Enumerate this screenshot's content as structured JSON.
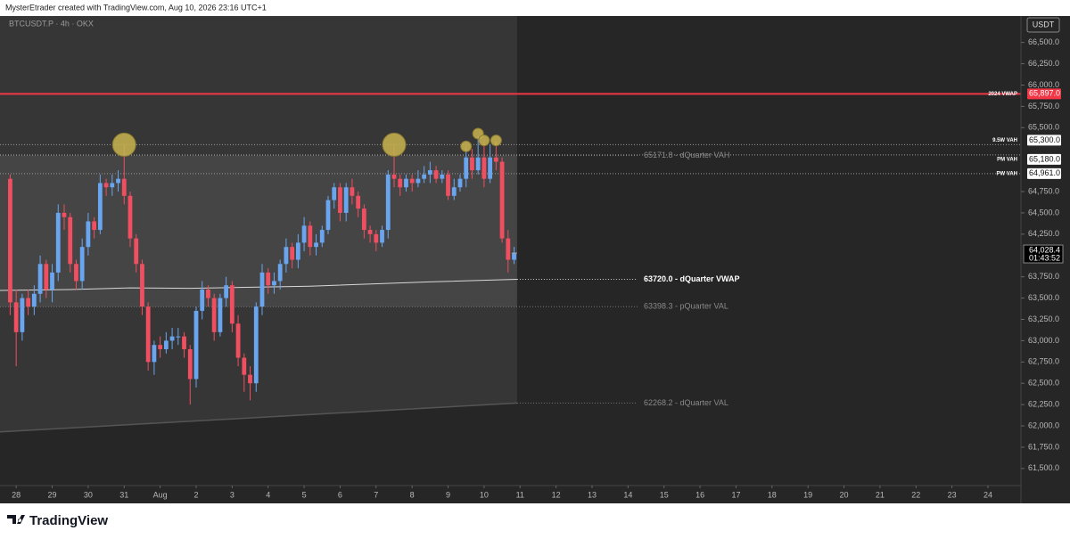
{
  "chart_data": {
    "type": "candlestick",
    "attribution": "MysterEtrader created with TradingView.com, Aug 10, 2026 23:16 UTC+1",
    "symbol": "BTCUSDT.P · 4h · OKX",
    "currency_label": "USDT",
    "logo": "TradingView",
    "up_color": "#6aa5f0",
    "down_color": "#ef4f60",
    "open": [
      64900,
      63450,
      63100,
      63500,
      63400,
      63550,
      63900,
      63600,
      63800,
      64500,
      64450,
      63900,
      63700,
      64100,
      64400,
      64300,
      64850,
      64800,
      64850,
      64900,
      64700,
      64200,
      63900,
      63400,
      62750,
      62950,
      62900,
      63000,
      63050,
      63050,
      62900,
      62550,
      63350,
      63600,
      63500,
      63100,
      63500,
      63650,
      63200,
      62800,
      62600,
      62500,
      63400,
      63800,
      63650,
      63700,
      63900,
      64100,
      63950,
      64150,
      64350,
      64100,
      64150,
      64300,
      64650,
      64800,
      64500,
      64800,
      64700,
      64550,
      64300,
      64250,
      64150,
      64300,
      64950,
      64900,
      64800,
      64900,
      64850,
      64900,
      64950,
      65000,
      64900,
      64950,
      64700,
      64800,
      64900,
      65150,
      65000,
      65150,
      64900,
      65150,
      65100,
      64200,
      63950
    ],
    "high": [
      64950,
      63600,
      63550,
      63600,
      63650,
      64000,
      63950,
      63900,
      64600,
      64600,
      64500,
      63950,
      64200,
      64500,
      64450,
      64950,
      64900,
      64950,
      65000,
      65300,
      64750,
      64250,
      63950,
      63450,
      63000,
      63050,
      63100,
      63150,
      63150,
      63100,
      62950,
      63400,
      63700,
      63650,
      63550,
      63550,
      63750,
      63700,
      63300,
      62850,
      62700,
      63450,
      63900,
      63850,
      63800,
      63950,
      64200,
      64150,
      64250,
      64450,
      64400,
      64250,
      64350,
      64700,
      64850,
      64850,
      64850,
      64900,
      64750,
      64600,
      64350,
      64300,
      64350,
      65000,
      65300,
      64950,
      64950,
      64950,
      65000,
      65050,
      65100,
      65050,
      65000,
      65000,
      64900,
      64950,
      65280,
      65250,
      65400,
      65350,
      65300,
      65350,
      65150,
      64300,
      64100
    ],
    "low": [
      63300,
      62700,
      63000,
      63300,
      63300,
      63450,
      63500,
      63450,
      63700,
      64300,
      63800,
      63600,
      63600,
      64000,
      64200,
      64250,
      64700,
      64700,
      64750,
      64600,
      64100,
      63800,
      63300,
      62650,
      62600,
      62800,
      62850,
      62900,
      62950,
      62800,
      62250,
      62450,
      63250,
      63400,
      63000,
      63050,
      63400,
      63100,
      62700,
      62400,
      62300,
      62400,
      63300,
      63550,
      63550,
      63600,
      63800,
      63850,
      63850,
      64050,
      64000,
      64000,
      64100,
      64250,
      64550,
      64400,
      64400,
      64600,
      64450,
      64200,
      64150,
      64050,
      64100,
      64200,
      64800,
      64700,
      64750,
      64750,
      64800,
      64850,
      64850,
      64850,
      64850,
      64650,
      64650,
      64750,
      64800,
      64900,
      64950,
      64800,
      64850,
      65000,
      64150,
      63800,
      63900
    ],
    "close": [
      63450,
      63100,
      63500,
      63400,
      63550,
      63900,
      63600,
      63800,
      64500,
      64450,
      63900,
      63700,
      64100,
      64400,
      64300,
      64850,
      64800,
      64850,
      64900,
      64700,
      64200,
      63900,
      63400,
      62750,
      62950,
      62900,
      63000,
      63050,
      63050,
      62900,
      62550,
      63350,
      63600,
      63500,
      63100,
      63500,
      63650,
      63200,
      62800,
      62600,
      62500,
      63400,
      63800,
      63650,
      63700,
      63900,
      64100,
      63950,
      64150,
      64350,
      64100,
      64150,
      64300,
      64650,
      64800,
      64500,
      64800,
      64700,
      64550,
      64300,
      64250,
      64150,
      64300,
      64950,
      64900,
      64800,
      64900,
      64850,
      64900,
      64950,
      65000,
      64900,
      64950,
      64700,
      64800,
      64900,
      65150,
      65000,
      65150,
      64900,
      65150,
      65100,
      64200,
      63950,
      64028.4
    ],
    "last_price": {
      "value": 64028.4,
      "label": "64,028.4"
    },
    "countdown": "01:43:52",
    "markers": {
      "color": "#c9b450",
      "x": [
        19,
        64,
        76,
        78,
        79,
        81
      ],
      "y": [
        65300,
        65300,
        65280,
        65430,
        65350,
        65350
      ],
      "size": [
        13,
        13,
        6,
        6,
        6,
        6
      ]
    },
    "vwap_curve": {
      "color": "#d8d8d8",
      "x": [
        -1.7,
        10,
        20,
        30,
        50,
        70,
        84.5
      ],
      "y": [
        63590,
        63600,
        63620,
        63615,
        63640,
        63690,
        63720
      ]
    },
    "val_curve": {
      "x": [
        -1.7,
        84.5
      ],
      "y": [
        61930,
        62268.2
      ]
    },
    "levels": [
      {
        "name": "2024 VWAP",
        "value": 65897,
        "label": "65,897.0",
        "color": "#f23645"
      },
      {
        "name": "9.5W VAH",
        "value": 65300,
        "label": "65,300.0",
        "color": "#9a9a9a"
      },
      {
        "name": "PM VAH",
        "value": 65180,
        "label": "65,180.0",
        "color": "#9a9a9a"
      },
      {
        "name": "PW VAH",
        "value": 64961,
        "label": "64,961.0",
        "color": "#9a9a9a"
      }
    ],
    "quarter_levels": [
      {
        "text": "65171.8 - dQuarter VAH",
        "value": 65171.8,
        "bold": false
      },
      {
        "text": "63720.0 - dQuarter VWAP",
        "value": 63720.0,
        "bold": true
      },
      {
        "text": "63398.3 - pQuarter VAL",
        "value": 63398.3,
        "bold": false
      },
      {
        "text": "62268.2 - dQuarter VAL",
        "value": 62268.2,
        "bold": false
      }
    ],
    "xlim": [
      -1.7,
      168.5
    ],
    "ylim": [
      61300,
      66810
    ],
    "xticks": [
      {
        "value": 1,
        "label": "28"
      },
      {
        "value": 7,
        "label": "29"
      },
      {
        "value": 13,
        "label": "30"
      },
      {
        "value": 19,
        "label": "31"
      },
      {
        "value": 25,
        "label": "Aug"
      },
      {
        "value": 31,
        "label": "2"
      },
      {
        "value": 37,
        "label": "3"
      },
      {
        "value": 43,
        "label": "4"
      },
      {
        "value": 49,
        "label": "5"
      },
      {
        "value": 55,
        "label": "6"
      },
      {
        "value": 61,
        "label": "7"
      },
      {
        "value": 67,
        "label": "8"
      },
      {
        "value": 73,
        "label": "9"
      },
      {
        "value": 79,
        "label": "10"
      },
      {
        "value": 85,
        "label": "11"
      },
      {
        "value": 91,
        "label": "12"
      },
      {
        "value": 97,
        "label": "13"
      },
      {
        "value": 103,
        "label": "14"
      },
      {
        "value": 109,
        "label": "15"
      },
      {
        "value": 115,
        "label": "16"
      },
      {
        "value": 121,
        "label": "17"
      },
      {
        "value": 127,
        "label": "18"
      },
      {
        "value": 133,
        "label": "19"
      },
      {
        "value": 139,
        "label": "20"
      },
      {
        "value": 145,
        "label": "21"
      },
      {
        "value": 151,
        "label": "22"
      },
      {
        "value": 157,
        "label": "23"
      },
      {
        "value": 163,
        "label": "24"
      }
    ],
    "yticks": [
      {
        "value": 61500,
        "label": "61,500.0"
      },
      {
        "value": 61750,
        "label": "61,750.0"
      },
      {
        "value": 62000,
        "label": "62,000.0"
      },
      {
        "value": 62250,
        "label": "62,250.0"
      },
      {
        "value": 62500,
        "label": "62,500.0"
      },
      {
        "value": 62750,
        "label": "62,750.0"
      },
      {
        "value": 63000,
        "label": "63,000.0"
      },
      {
        "value": 63250,
        "label": "63,250.0"
      },
      {
        "value": 63500,
        "label": "63,500.0"
      },
      {
        "value": 63750,
        "label": "63,750.0"
      },
      {
        "value": 64250,
        "label": "64,250.0"
      },
      {
        "value": 64500,
        "label": "64,500.0"
      },
      {
        "value": 64750,
        "label": "64,750.0"
      },
      {
        "value": 65500,
        "label": "65,500.0"
      },
      {
        "value": 65750,
        "label": "65,750.0"
      },
      {
        "value": 66000,
        "label": "66,000.0"
      },
      {
        "value": 66250,
        "label": "66,250.0"
      },
      {
        "value": 66500,
        "label": "66,500.0"
      }
    ]
  }
}
